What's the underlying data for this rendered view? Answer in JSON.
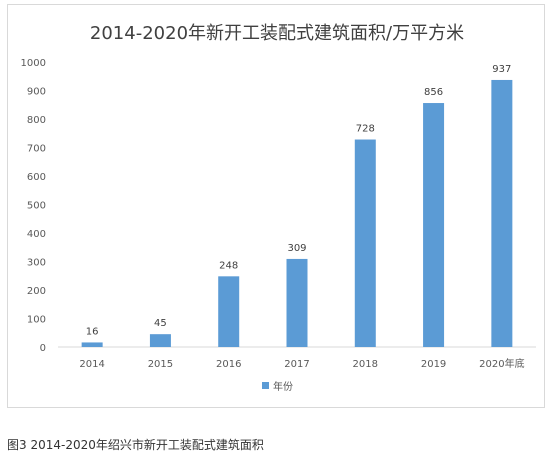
{
  "chart_data": {
    "type": "bar",
    "title": "2014-2020年新开工装配式建筑面积/万平方米",
    "categories": [
      "2014",
      "2015",
      "2016",
      "2017",
      "2018",
      "2019",
      "2020年底"
    ],
    "series": [
      {
        "name": "年份",
        "values": [
          16,
          45,
          248,
          309,
          728,
          856,
          937
        ]
      }
    ],
    "ylim": [
      0,
      1000
    ],
    "yticks": [
      0,
      100,
      200,
      300,
      400,
      500,
      600,
      700,
      800,
      900,
      1000
    ],
    "xlabel": "",
    "ylabel": "",
    "grid": false,
    "legend": "bottom",
    "bar_color": "#5b9bd5"
  },
  "caption": "图3 2014-2020年绍兴市新开工装配式建筑面积"
}
